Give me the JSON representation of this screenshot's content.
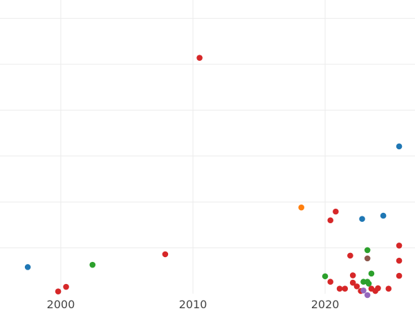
{
  "chart_data": {
    "type": "scatter",
    "title": "",
    "xlabel": "",
    "ylabel": "",
    "grid": true,
    "legend": "none",
    "xlim": [
      1995.4,
      2026.8
    ],
    "ylim": [
      0,
      6.4
    ],
    "x_ticks": [
      {
        "value": 2000,
        "label": "2000"
      },
      {
        "value": 2010,
        "label": "2010"
      },
      {
        "value": 2020,
        "label": "2020"
      }
    ],
    "y_gridlines": [
      1,
      2,
      3,
      4,
      5,
      6
    ],
    "x_gridlines": [
      2000,
      2010,
      2020
    ],
    "series": [
      {
        "color": "#1f77b4",
        "points": [
          {
            "x": 1997.5,
            "y": 0.58
          },
          {
            "x": 2022.8,
            "y": 1.63
          },
          {
            "x": 2024.4,
            "y": 1.7
          },
          {
            "x": 2025.6,
            "y": 3.21
          }
        ]
      },
      {
        "color": "#ff7f0e",
        "points": [
          {
            "x": 2018.2,
            "y": 1.88
          }
        ]
      },
      {
        "color": "#2ca02c",
        "points": [
          {
            "x": 2002.4,
            "y": 0.63
          },
          {
            "x": 2020.0,
            "y": 0.38
          },
          {
            "x": 2022.9,
            "y": 0.26
          },
          {
            "x": 2023.2,
            "y": 0.26
          },
          {
            "x": 2023.3,
            "y": 0.22
          },
          {
            "x": 2023.2,
            "y": 0.95
          },
          {
            "x": 2023.5,
            "y": 0.44
          }
        ]
      },
      {
        "color": "#d62728",
        "points": [
          {
            "x": 1999.8,
            "y": 0.05
          },
          {
            "x": 2000.4,
            "y": 0.15
          },
          {
            "x": 2007.9,
            "y": 0.86
          },
          {
            "x": 2010.5,
            "y": 5.14
          },
          {
            "x": 2020.4,
            "y": 0.26
          },
          {
            "x": 2020.4,
            "y": 1.6
          },
          {
            "x": 2020.8,
            "y": 1.79
          },
          {
            "x": 2021.1,
            "y": 0.11
          },
          {
            "x": 2021.5,
            "y": 0.11
          },
          {
            "x": 2021.9,
            "y": 0.83
          },
          {
            "x": 2022.1,
            "y": 0.24
          },
          {
            "x": 2022.1,
            "y": 0.4
          },
          {
            "x": 2022.4,
            "y": 0.16
          },
          {
            "x": 2022.7,
            "y": 0.06
          },
          {
            "x": 2023.5,
            "y": 0.11
          },
          {
            "x": 2023.8,
            "y": 0.06
          },
          {
            "x": 2024.0,
            "y": 0.12
          },
          {
            "x": 2024.8,
            "y": 0.11
          },
          {
            "x": 2025.6,
            "y": 0.39
          },
          {
            "x": 2025.6,
            "y": 0.72
          },
          {
            "x": 2025.6,
            "y": 1.05
          }
        ]
      },
      {
        "color": "#9467bd",
        "points": [
          {
            "x": 2022.9,
            "y": 0.07
          },
          {
            "x": 2023.2,
            "y": -0.03
          }
        ]
      },
      {
        "color": "#8c564b",
        "points": [
          {
            "x": 2023.2,
            "y": 0.77
          }
        ]
      }
    ]
  }
}
